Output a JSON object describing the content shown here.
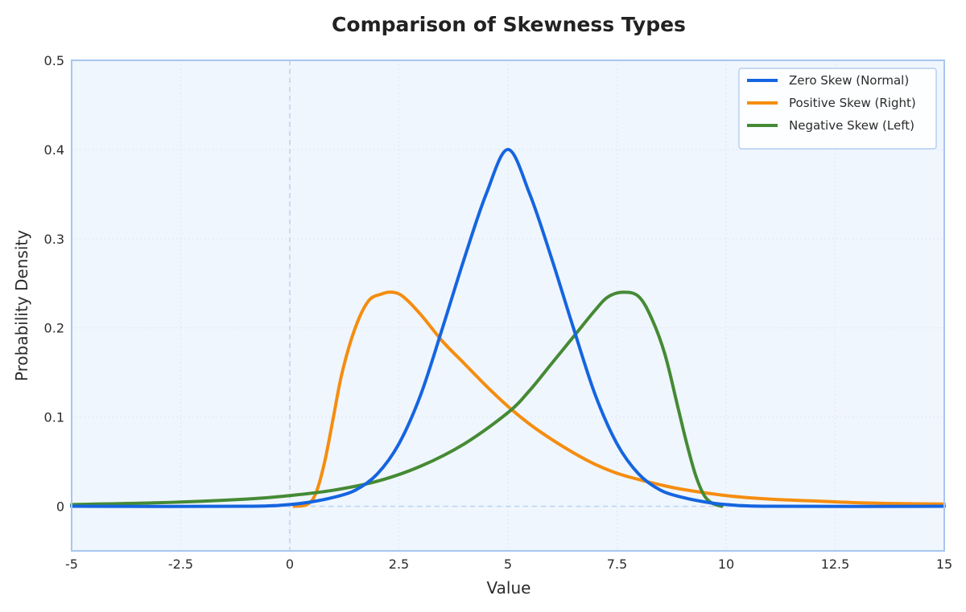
{
  "chart_data": {
    "type": "line",
    "title": "Comparison of Skewness Types",
    "xlabel": "Value",
    "ylabel": "Probability Density",
    "xlim": [
      -5,
      15
    ],
    "ylim": [
      -0.05,
      0.5
    ],
    "x_ticks": [
      -5,
      -2.5,
      0,
      2.5,
      5,
      7.5,
      10,
      12.5,
      15
    ],
    "x_tick_labels": [
      "-5",
      "-2.5",
      "0",
      "2.5",
      "5",
      "7.5",
      "10",
      "12.5",
      "15"
    ],
    "y_ticks": [
      0,
      0.1,
      0.2,
      0.3,
      0.4,
      0.5
    ],
    "y_tick_labels": [
      "0",
      "0.1",
      "0.2",
      "0.3",
      "0.4",
      "0.5"
    ],
    "grid": true,
    "reference_lines": {
      "x": 0,
      "y": 0
    },
    "legend_position": "top-right",
    "series": [
      {
        "name": "Zero Skew (Normal)",
        "color": "#1565e0",
        "x": [
          -5,
          -1,
          0,
          0.5,
          1,
          1.5,
          2,
          2.5,
          3,
          3.5,
          4,
          4.5,
          5,
          5.5,
          6,
          6.5,
          7,
          7.5,
          8,
          8.5,
          9,
          9.5,
          10,
          11,
          15
        ],
        "y": [
          0,
          0,
          0.002,
          0.005,
          0.01,
          0.018,
          0.036,
          0.07,
          0.125,
          0.2,
          0.278,
          0.35,
          0.4,
          0.35,
          0.278,
          0.2,
          0.125,
          0.07,
          0.036,
          0.018,
          0.01,
          0.005,
          0.002,
          0,
          0
        ]
      },
      {
        "name": "Positive Skew (Right)",
        "color": "#f58d10",
        "x": [
          0.1,
          0.4,
          0.6,
          0.8,
          1.0,
          1.2,
          1.5,
          1.8,
          2.1,
          2.35,
          2.6,
          3.0,
          3.5,
          4.0,
          4.5,
          5.0,
          5.5,
          6.0,
          6.5,
          7.0,
          7.5,
          8.0,
          8.5,
          9.0,
          10.0,
          11.0,
          12.0,
          13.0,
          14.0,
          15.0
        ],
        "y": [
          0.0,
          0.002,
          0.015,
          0.05,
          0.1,
          0.15,
          0.2,
          0.23,
          0.238,
          0.24,
          0.235,
          0.215,
          0.185,
          0.16,
          0.135,
          0.112,
          0.092,
          0.075,
          0.06,
          0.047,
          0.037,
          0.03,
          0.024,
          0.019,
          0.012,
          0.008,
          0.006,
          0.004,
          0.003,
          0.0025
        ]
      },
      {
        "name": "Negative Skew (Left)",
        "color": "#458a35",
        "x": [
          -5,
          -3,
          -1,
          0,
          1,
          2,
          3,
          4,
          5,
          5.5,
          6,
          6.5,
          7,
          7.3,
          7.65,
          8,
          8.3,
          8.6,
          8.9,
          9.1,
          9.3,
          9.5,
          9.7,
          9.9
        ],
        "y": [
          0.002,
          0.004,
          0.008,
          0.012,
          0.018,
          0.028,
          0.045,
          0.07,
          0.105,
          0.13,
          0.16,
          0.19,
          0.22,
          0.235,
          0.24,
          0.235,
          0.21,
          0.17,
          0.11,
          0.07,
          0.035,
          0.012,
          0.003,
          0.0
        ]
      }
    ]
  }
}
